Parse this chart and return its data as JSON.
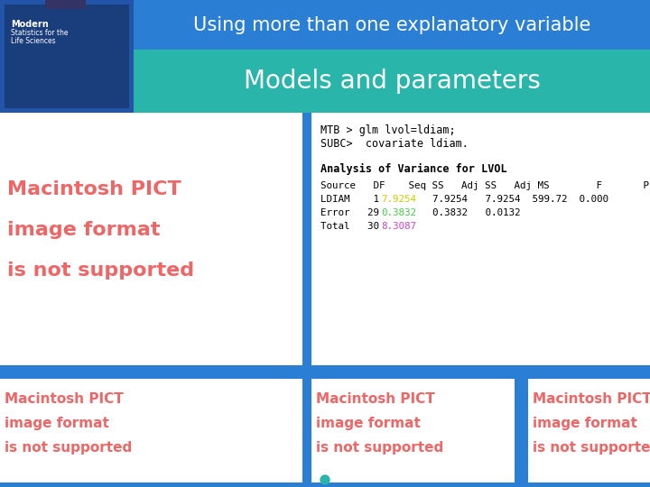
{
  "title": "Using more than one explanatory variable",
  "subtitle": "Models and parameters",
  "title_bg": "#2a7fd4",
  "subtitle_bg": "#2ab5aa",
  "main_bg": "#2a7fd4",
  "code_lines": [
    "MTB > glm lvol=ldiam;",
    "SUBC>  covariate ldiam."
  ],
  "analysis_header": "Analysis of Variance for LVOL",
  "color_seqss_ldiam": "#cccc00",
  "color_seqss_error": "#44cc44",
  "color_seqss_total": "#cc44cc",
  "pict_text_color": "#ee6666",
  "book_cover_bg": "#2255aa",
  "bottom_teal_dot": "#2ab5aa"
}
